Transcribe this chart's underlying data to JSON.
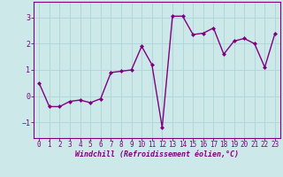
{
  "x": [
    0,
    1,
    2,
    3,
    4,
    5,
    6,
    7,
    8,
    9,
    10,
    11,
    12,
    13,
    14,
    15,
    16,
    17,
    18,
    19,
    20,
    21,
    22,
    23
  ],
  "y": [
    0.5,
    -0.4,
    -0.4,
    -0.2,
    -0.15,
    -0.25,
    -0.1,
    0.9,
    0.95,
    1.0,
    1.9,
    1.2,
    -1.2,
    3.05,
    3.05,
    2.35,
    2.4,
    2.6,
    1.6,
    2.1,
    2.2,
    2.0,
    1.1,
    2.4
  ],
  "line_color": "#800080",
  "marker": "D",
  "marker_size": 2.0,
  "bg_color": "#cce8e8",
  "grid_color": "#b0d8d8",
  "xlabel": "Windchill (Refroidissement éolien,°C)",
  "xlabel_color": "#800080",
  "tick_color": "#800080",
  "spine_color": "#800080",
  "xlim": [
    -0.5,
    23.5
  ],
  "ylim": [
    -1.6,
    3.6
  ],
  "yticks": [
    -1,
    0,
    1,
    2,
    3
  ],
  "xticks": [
    0,
    1,
    2,
    3,
    4,
    5,
    6,
    7,
    8,
    9,
    10,
    11,
    12,
    13,
    14,
    15,
    16,
    17,
    18,
    19,
    20,
    21,
    22,
    23
  ],
  "line_width": 1.0,
  "tick_fontsize": 5.5,
  "xlabel_fontsize": 6.0
}
